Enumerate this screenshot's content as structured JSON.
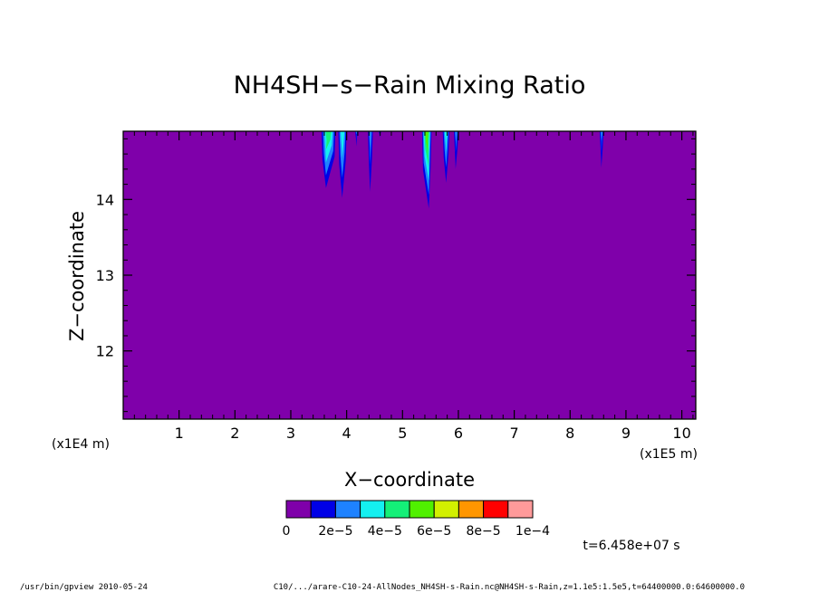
{
  "chart_data": {
    "type": "heatmap",
    "title": "NH4SH−s−Rain Mixing Ratio",
    "xlabel": "X−coordinate",
    "ylabel": "Z−coordinate",
    "x_scale_label": "(x1E5 m)",
    "y_scale_label": "(x1E4 m)",
    "xlim": [
      0,
      10.25
    ],
    "ylim": [
      11.1,
      14.9
    ],
    "x_ticks": [
      1,
      2,
      3,
      4,
      5,
      6,
      7,
      8,
      9,
      10
    ],
    "y_ticks": [
      12,
      13,
      14
    ],
    "x_tick_labels": [
      "1",
      "2",
      "3",
      "4",
      "5",
      "6",
      "7",
      "8",
      "9",
      "10"
    ],
    "y_tick_labels": [
      "12",
      "13",
      "14"
    ],
    "background_level_color": "#7f00aa",
    "plumes": [
      {
        "x0": 3.55,
        "x1": 3.8,
        "xtip": 3.63,
        "bottom": 14.15,
        "level": 4
      },
      {
        "x0": 3.85,
        "x1": 4.0,
        "xtip": 3.92,
        "bottom": 14.02,
        "level": 3
      },
      {
        "x0": 4.15,
        "x1": 4.2,
        "xtip": 4.17,
        "bottom": 14.7,
        "level": 2
      },
      {
        "x0": 4.38,
        "x1": 4.47,
        "xtip": 4.42,
        "bottom": 14.1,
        "level": 2
      },
      {
        "x0": 4.57,
        "x1": 4.62,
        "xtip": 4.59,
        "bottom": 14.82,
        "level": 1
      },
      {
        "x0": 5.35,
        "x1": 5.52,
        "xtip": 5.47,
        "bottom": 13.88,
        "level": 5
      },
      {
        "x0": 5.72,
        "x1": 5.84,
        "xtip": 5.78,
        "bottom": 14.22,
        "level": 3
      },
      {
        "x0": 5.92,
        "x1": 6.0,
        "xtip": 5.95,
        "bottom": 14.4,
        "level": 2
      },
      {
        "x0": 8.53,
        "x1": 8.6,
        "xtip": 8.56,
        "bottom": 14.42,
        "level": 2
      }
    ]
  },
  "colorbar": {
    "colors": [
      "#7f00aa",
      "#0000e6",
      "#1e82ff",
      "#14f0f0",
      "#14f078",
      "#50f000",
      "#d2f000",
      "#ff9600",
      "#ff0000",
      "#ff9a9a"
    ],
    "labels": [
      "0",
      "2e−5",
      "4e−5",
      "6e−5",
      "8e−5",
      "1e−4"
    ]
  },
  "time_label": "t=6.458e+07 s",
  "footer": {
    "left": "/usr/bin/gpview  2010-05-24",
    "right": "C10/.../arare-C10-24-AllNodes_NH4SH-s-Rain.nc@NH4SH-s-Rain,z=1.1e5:1.5e5,t=64400000.0:64600000.0"
  }
}
